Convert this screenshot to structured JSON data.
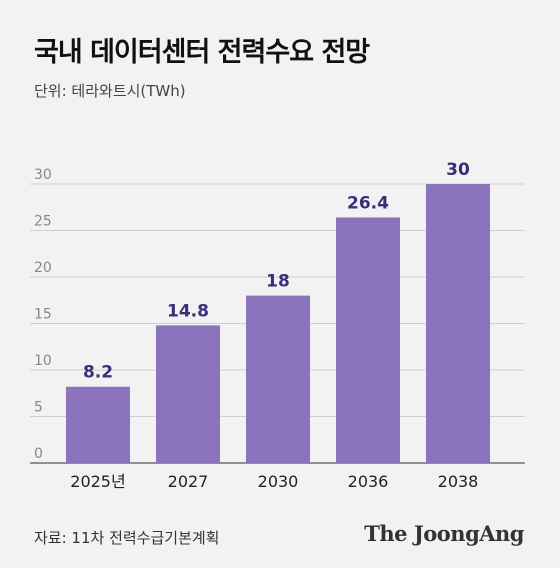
{
  "header": {
    "title": "국내 데이터센터 전력수요 전망",
    "unit": "단위: 테라와트시(TWh)"
  },
  "footer": {
    "source": "자료: 11차 전력수급기본계획",
    "brand": "The JoongAng"
  },
  "colors": {
    "bar": "#8b74bb",
    "value_label": "#3b2d7a",
    "grid": "#cfcfcf"
  },
  "chart_data": {
    "type": "bar",
    "categories": [
      "2025년",
      "2027",
      "2030",
      "2036",
      "2038"
    ],
    "values": [
      8.2,
      14.8,
      18,
      26.4,
      30
    ],
    "value_labels": [
      "8.2",
      "14.8",
      "18",
      "26.4",
      "30"
    ],
    "yticks": [
      "0",
      "5",
      "10",
      "15",
      "20",
      "25",
      "30"
    ],
    "ylim": [
      0,
      30
    ],
    "grid": true,
    "legend": "none"
  }
}
